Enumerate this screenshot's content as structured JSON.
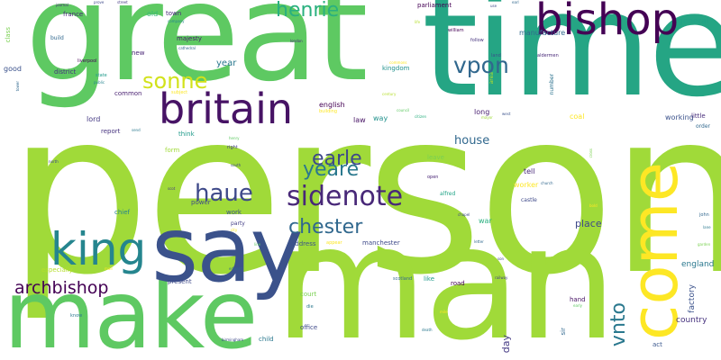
{
  "words": [
    {
      "text": "person",
      "color": "#a0da39"
    },
    {
      "text": "great",
      "color": "#5ec962"
    },
    {
      "text": "time",
      "color": "#25a584"
    },
    {
      "text": "man",
      "color": "#a0da39"
    },
    {
      "text": "make",
      "color": "#5ec962"
    },
    {
      "text": "say",
      "color": "#3b528b"
    },
    {
      "text": "come",
      "color": "#fde725"
    },
    {
      "text": "bishop",
      "color": "#440154"
    },
    {
      "text": "britain",
      "color": "#471365"
    },
    {
      "text": "king",
      "color": "#25858e"
    },
    {
      "text": "sidenote",
      "color": "#482878"
    },
    {
      "text": "haue",
      "color": "#3e4989"
    },
    {
      "text": "chester",
      "color": "#31688e"
    },
    {
      "text": "archbishop",
      "color": "#440154"
    },
    {
      "text": "henrie",
      "color": "#2ab07f"
    },
    {
      "text": "vpon",
      "color": "#31688e"
    },
    {
      "text": "sonne",
      "color": "#d2e21b"
    },
    {
      "text": "earle",
      "color": "#3e4989"
    },
    {
      "text": "yeare",
      "color": "#2a788e"
    },
    {
      "text": "vnto",
      "color": "#2a788e"
    },
    {
      "text": "house",
      "color": "#31688e"
    },
    {
      "text": "place",
      "color": "#3e4989"
    },
    {
      "text": "england",
      "color": "#2a788e"
    },
    {
      "text": "country",
      "color": "#46327e"
    },
    {
      "text": "day",
      "color": "#443983"
    },
    {
      "text": "year",
      "color": "#2a788e"
    },
    {
      "text": "general",
      "color": "#20a386"
    },
    {
      "text": "manufacture",
      "color": "#31688e"
    },
    {
      "text": "factory",
      "color": "#3b528b"
    },
    {
      "text": "working",
      "color": "#3b528b"
    },
    {
      "text": "coal",
      "color": "#fde725"
    },
    {
      "text": "english",
      "color": "#440154"
    },
    {
      "text": "law",
      "color": "#471365"
    },
    {
      "text": "long",
      "color": "#481f70"
    },
    {
      "text": "way",
      "color": "#21918c"
    },
    {
      "text": "tell",
      "color": "#482878"
    },
    {
      "text": "worker",
      "color": "#fde725"
    },
    {
      "text": "war",
      "color": "#2ab07f"
    },
    {
      "text": "good",
      "color": "#3b528b"
    },
    {
      "text": "lord",
      "color": "#443983"
    },
    {
      "text": "report",
      "color": "#46327e"
    },
    {
      "text": "old",
      "color": "#35b779"
    },
    {
      "text": "town",
      "color": "#482878"
    },
    {
      "text": "majesty",
      "color": "#481a6c"
    },
    {
      "text": "france",
      "color": "#482878"
    },
    {
      "text": "district",
      "color": "#46327e"
    },
    {
      "text": "kingdom",
      "color": "#21918c"
    },
    {
      "text": "common",
      "color": "#481f70"
    },
    {
      "text": "especially",
      "color": "#b5de2b"
    },
    {
      "text": "present",
      "color": "#3e4989"
    },
    {
      "text": "parliament",
      "color": "#440154"
    },
    {
      "text": "manchester",
      "color": "#3e4989"
    },
    {
      "text": "address",
      "color": "#3b528b"
    },
    {
      "text": "court",
      "color": "#7ad151"
    },
    {
      "text": "office",
      "color": "#3e4989"
    },
    {
      "text": "child",
      "color": "#2a788e"
    },
    {
      "text": "work",
      "color": "#3b528b"
    },
    {
      "text": "power",
      "color": "#3e4989"
    },
    {
      "text": "chief",
      "color": "#26828e"
    },
    {
      "text": "form",
      "color": "#a0da39"
    },
    {
      "text": "think",
      "color": "#1f9a8a"
    },
    {
      "text": "little",
      "color": "#472c7a"
    },
    {
      "text": "leave",
      "color": "#7ad151"
    },
    {
      "text": "like",
      "color": "#1f9a8a"
    },
    {
      "text": "new",
      "color": "#482475"
    },
    {
      "text": "road",
      "color": "#440154"
    },
    {
      "text": "hand",
      "color": "#471365"
    },
    {
      "text": "sir",
      "color": "#31688e"
    },
    {
      "text": "act",
      "color": "#39568c"
    },
    {
      "text": "party",
      "color": "#433e85"
    },
    {
      "text": "class",
      "color": "#7ad151"
    },
    {
      "text": "build",
      "color": "#31688e"
    },
    {
      "text": "castle",
      "color": "#3e4989"
    },
    {
      "text": "alfred",
      "color": "#20a386"
    },
    {
      "text": "number",
      "color": "#2c728e"
    },
    {
      "text": "order",
      "color": "#31688e"
    },
    {
      "text": "area",
      "color": "#b5de2b"
    },
    {
      "text": "land",
      "color": "#3b528b"
    },
    {
      "text": "aldermen",
      "color": "#482878"
    },
    {
      "text": "william",
      "color": "#440154"
    },
    {
      "text": "follow",
      "color": "#46327e"
    },
    {
      "text": "journal",
      "color": "#482878"
    },
    {
      "text": "street",
      "color": "#443983"
    },
    {
      "text": "prove",
      "color": "#3e4989"
    },
    {
      "text": "liverpool",
      "color": "#440154"
    },
    {
      "text": "state",
      "color": "#1f9a8a"
    },
    {
      "text": "public",
      "color": "#25858e"
    },
    {
      "text": "subject",
      "color": "#fde725"
    },
    {
      "text": "building",
      "color": "#fde725"
    },
    {
      "text": "council",
      "color": "#5ec962"
    },
    {
      "text": "citizen",
      "color": "#2ab07f"
    },
    {
      "text": "century",
      "color": "#b5de2b"
    },
    {
      "text": "cathedral",
      "color": "#31688e"
    },
    {
      "text": "london",
      "color": "#482878"
    },
    {
      "text": "company",
      "color": "#25858e"
    },
    {
      "text": "north",
      "color": "#3e4989"
    },
    {
      "text": "south",
      "color": "#3e4989"
    },
    {
      "text": "right",
      "color": "#433e85"
    },
    {
      "text": "henry",
      "color": "#5ec962"
    },
    {
      "text": "send",
      "color": "#2a788e"
    },
    {
      "text": "scot",
      "color": "#443983"
    },
    {
      "text": "city",
      "color": "#fde725"
    },
    {
      "text": "appear",
      "color": "#fde725"
    },
    {
      "text": "edward",
      "color": "#31688e"
    },
    {
      "text": "mail",
      "color": "#fde725"
    },
    {
      "text": "open",
      "color": "#482475"
    },
    {
      "text": "chapel",
      "color": "#3e4989"
    },
    {
      "text": "letter",
      "color": "#31688e"
    },
    {
      "text": "church",
      "color": "#31688e"
    },
    {
      "text": "bold",
      "color": "#fde725"
    },
    {
      "text": "cross",
      "color": "#7ad151"
    },
    {
      "text": "john",
      "color": "#31688e"
    },
    {
      "text": "lane",
      "color": "#2a788e"
    },
    {
      "text": "garden",
      "color": "#7ad151"
    },
    {
      "text": "scotland",
      "color": "#31688e"
    },
    {
      "text": "railway",
      "color": "#433e85"
    },
    {
      "text": "early",
      "color": "#5ec962"
    },
    {
      "text": "know",
      "color": "#2a788e"
    },
    {
      "text": "birmingham",
      "color": "#3e4989"
    },
    {
      "text": "die",
      "color": "#2a788e"
    },
    {
      "text": "death",
      "color": "#2a788e"
    },
    {
      "text": "son",
      "color": "#3e4989"
    },
    {
      "text": "mile",
      "color": "#fde725"
    },
    {
      "text": "use",
      "color": "#3e4989"
    },
    {
      "text": "earl",
      "color": "#31688e"
    },
    {
      "text": "life",
      "color": "#b5de2b"
    },
    {
      "text": "mayor",
      "color": "#a0da39"
    },
    {
      "text": "west",
      "color": "#3b528b"
    },
    {
      "text": "commons",
      "color": "#fde725"
    },
    {
      "text": "tower",
      "color": "#31688e"
    },
    {
      "text": "line",
      "color": "#5ec962"
    }
  ]
}
